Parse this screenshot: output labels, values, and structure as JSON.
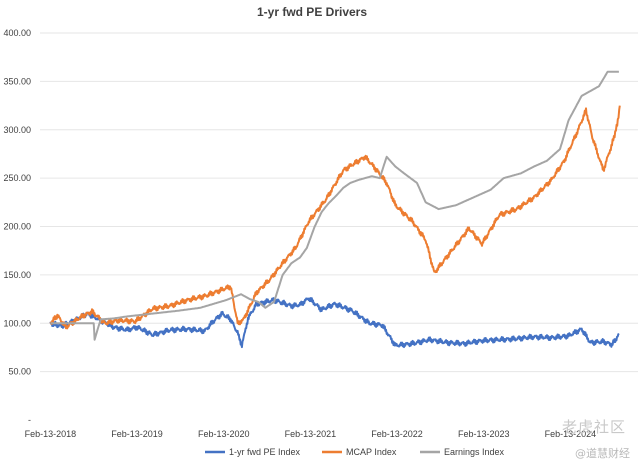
{
  "chart_data": {
    "type": "line",
    "title": "1-yr fwd PE Drivers",
    "xlabel": "",
    "ylabel": "",
    "x_ticks": [
      "Feb-13-2018",
      "Feb-13-2019",
      "Feb-13-2020",
      "Feb-13-2021",
      "Feb-13-2022",
      "Feb-13-2023",
      "Feb-13-2024"
    ],
    "y_ticks": [
      "-",
      "50.00",
      "100.00",
      "150.00",
      "200.00",
      "250.00",
      "300.00",
      "350.00",
      "400.00"
    ],
    "ylim": [
      0,
      400
    ],
    "grid": true,
    "legend_position": "bottom",
    "series": [
      {
        "name": "1-yr fwd PE Index",
        "color": "#4472C4",
        "x": [
          2018.12,
          2018.25,
          2018.4,
          2018.55,
          2018.7,
          2018.85,
          2019.0,
          2019.12,
          2019.3,
          2019.5,
          2019.7,
          2019.9,
          2020.0,
          2020.1,
          2020.2,
          2020.28,
          2020.33,
          2020.4,
          2020.5,
          2020.7,
          2020.9,
          2021.0,
          2021.1,
          2021.25,
          2021.4,
          2021.6,
          2021.8,
          2021.95,
          2022.1,
          2022.3,
          2022.5,
          2022.7,
          2022.9,
          2023.1,
          2023.3,
          2023.5,
          2023.7,
          2023.9,
          2024.1,
          2024.25,
          2024.35,
          2024.5,
          2024.6,
          2024.68
        ],
        "y": [
          100,
          97,
          103,
          110,
          103,
          96,
          93,
          96,
          88,
          93,
          94,
          92,
          102,
          110,
          104,
          90,
          77,
          105,
          120,
          124,
          118,
          119,
          126,
          114,
          120,
          113,
          100,
          98,
          77,
          79,
          83,
          80,
          79,
          82,
          83,
          84,
          86,
          85,
          87,
          94,
          80,
          81,
          78,
          88
        ]
      },
      {
        "name": "MCAP Index",
        "color": "#ED7D31",
        "x": [
          2018.12,
          2018.2,
          2018.3,
          2018.5,
          2018.6,
          2018.75,
          2018.9,
          2019.1,
          2019.3,
          2019.5,
          2019.7,
          2019.9,
          2020.05,
          2020.2,
          2020.28,
          2020.35,
          2020.5,
          2020.65,
          2020.8,
          2020.95,
          2021.1,
          2021.3,
          2021.5,
          2021.75,
          2021.85,
          2022.0,
          2022.1,
          2022.3,
          2022.45,
          2022.55,
          2022.75,
          2022.95,
          2023.1,
          2023.3,
          2023.5,
          2023.7,
          2023.9,
          2024.05,
          2024.2,
          2024.3,
          2024.38,
          2024.5,
          2024.6,
          2024.66,
          2024.69
        ],
        "y": [
          100,
          108,
          96,
          108,
          112,
          100,
          103,
          102,
          115,
          118,
          124,
          128,
          133,
          138,
          100,
          104,
          132,
          145,
          162,
          178,
          205,
          228,
          258,
          272,
          262,
          245,
          222,
          205,
          186,
          152,
          175,
          198,
          182,
          212,
          218,
          230,
          248,
          268,
          298,
          320,
          290,
          258,
          285,
          305,
          325
        ]
      },
      {
        "name": "Earnings Index",
        "color": "#A5A5A5",
        "x": [
          2018.12,
          2018.45,
          2018.62,
          2018.63,
          2018.7,
          2018.85,
          2019.0,
          2019.2,
          2019.4,
          2019.6,
          2019.85,
          2020.0,
          2020.15,
          2020.32,
          2020.42,
          2020.52,
          2020.6,
          2020.7,
          2020.8,
          2020.9,
          2021.0,
          2021.08,
          2021.17,
          2021.25,
          2021.33,
          2021.42,
          2021.5,
          2021.58,
          2021.67,
          2021.75,
          2021.83,
          2021.92,
          2022.0,
          2022.1,
          2022.2,
          2022.35,
          2022.45,
          2022.6,
          2022.8,
          2023.0,
          2023.2,
          2023.35,
          2023.55,
          2023.7,
          2023.85,
          2024.0,
          2024.1,
          2024.25,
          2024.35,
          2024.45,
          2024.55,
          2024.68
        ],
        "y": [
          100,
          100,
          100,
          83,
          104,
          105,
          107,
          109,
          111,
          113,
          116,
          120,
          124,
          130,
          125,
          122,
          116,
          122,
          150,
          162,
          168,
          178,
          200,
          215,
          224,
          232,
          240,
          245,
          248,
          250,
          252,
          250,
          272,
          262,
          255,
          245,
          225,
          218,
          222,
          230,
          238,
          250,
          255,
          262,
          268,
          280,
          310,
          335,
          340,
          345,
          360,
          360
        ]
      }
    ]
  },
  "watermark": {
    "main": "老虎社区",
    "sub": "@道慧财经"
  }
}
